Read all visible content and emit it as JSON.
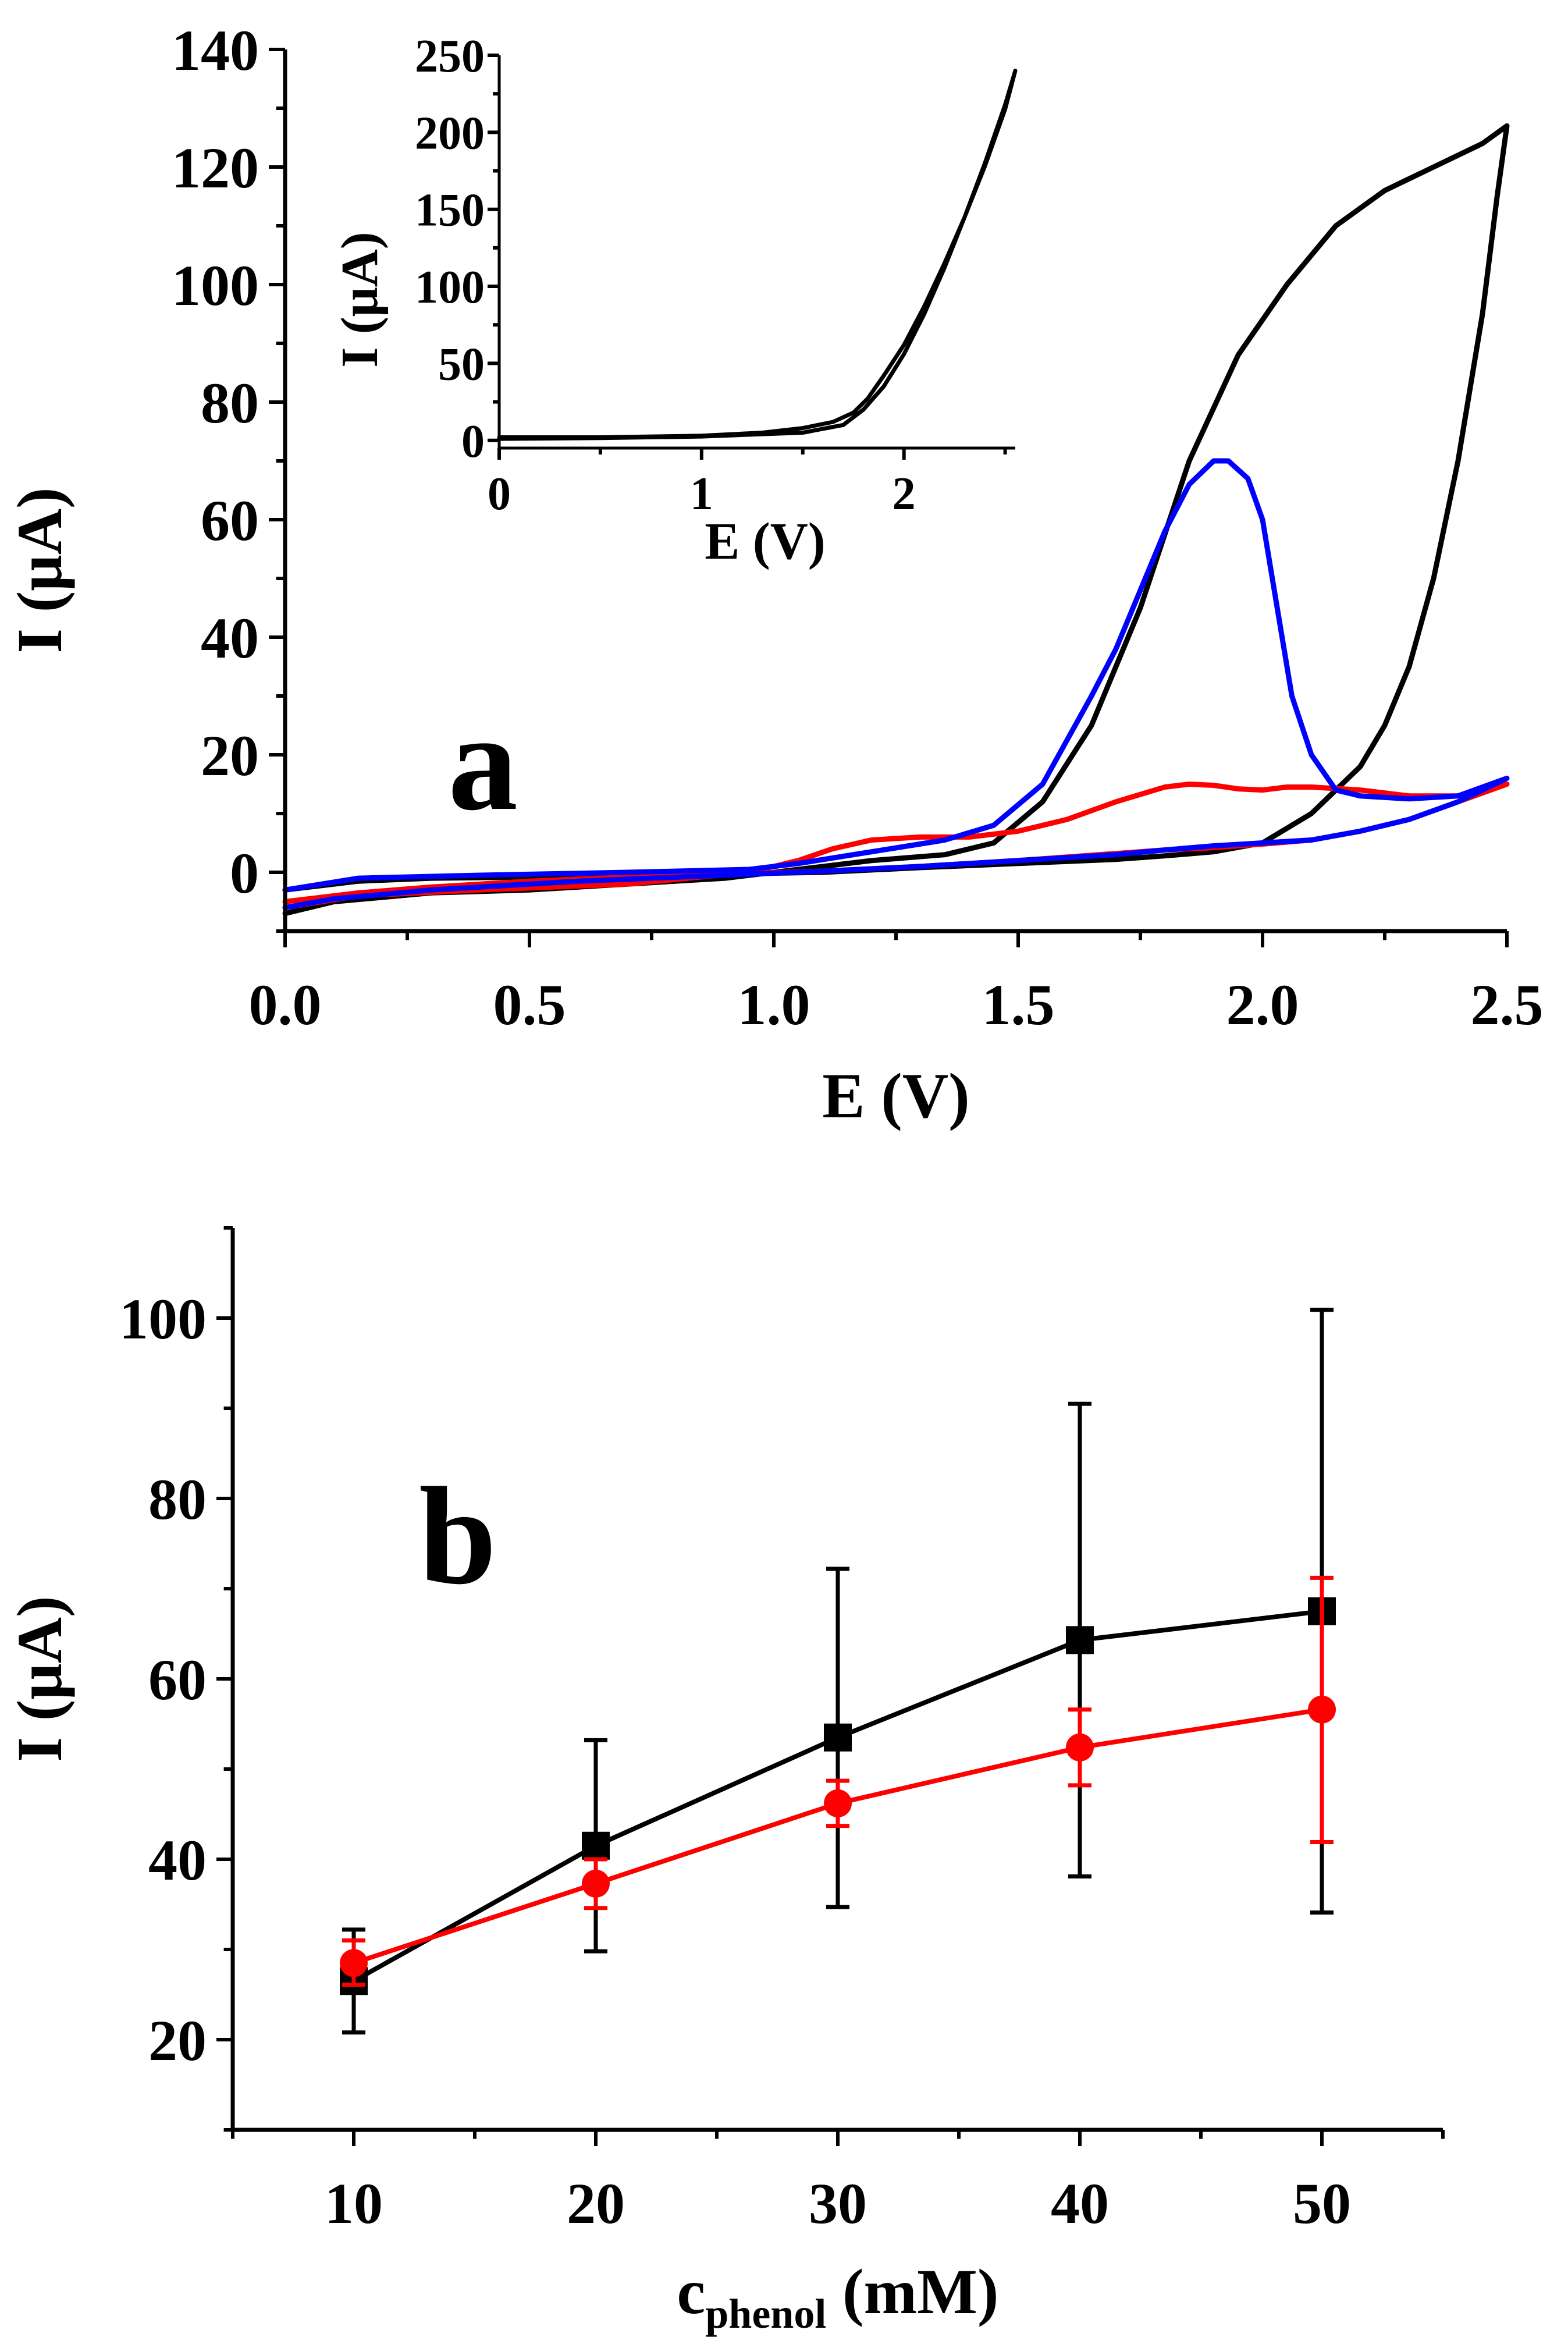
{
  "chart_data": [
    {
      "type": "line",
      "panel_label": "a",
      "xlabel": "E (V)",
      "ylabel": "I (μA)",
      "xlim": [
        0,
        2.5
      ],
      "ylim": [
        -10,
        140
      ],
      "xticks": [
        "0.0",
        "0.5",
        "1.0",
        "1.5",
        "2.0",
        "2.5"
      ],
      "yticks": [
        "0",
        "20",
        "40",
        "60",
        "80",
        "100",
        "120",
        "140"
      ],
      "series": [
        {
          "name": "black",
          "color": "#000000",
          "x": [
            0.0,
            0.1,
            0.3,
            0.5,
            0.7,
            0.9,
            1.05,
            1.2,
            1.35,
            1.45,
            1.55,
            1.65,
            1.75,
            1.85,
            1.95,
            2.05,
            2.15,
            2.25,
            2.35,
            2.45,
            2.5,
            2.48,
            2.45,
            2.4,
            2.35,
            2.3,
            2.25,
            2.2,
            2.1,
            2.0,
            1.9,
            1.8,
            1.7,
            1.5,
            1.3,
            1.1,
            0.9,
            0.7,
            0.5,
            0.3,
            0.15,
            0.0
          ],
          "y": [
            -7,
            -5,
            -3.5,
            -3,
            -2,
            -1,
            0.5,
            2,
            3,
            5,
            12,
            25,
            45,
            70,
            88,
            100,
            110,
            116,
            120,
            124,
            127,
            115,
            95,
            70,
            50,
            35,
            25,
            18,
            10,
            5,
            3.5,
            2.8,
            2.2,
            1.5,
            0.8,
            0,
            -0.3,
            -0.5,
            -0.8,
            -1,
            -1.5,
            -3
          ]
        },
        {
          "name": "red",
          "color": "#ff0000",
          "x": [
            0.0,
            0.15,
            0.4,
            0.7,
            0.95,
            1.05,
            1.12,
            1.2,
            1.3,
            1.4,
            1.5,
            1.6,
            1.7,
            1.8,
            1.85,
            1.9,
            1.95,
            2.0,
            2.05,
            2.1,
            2.2,
            2.3,
            2.4,
            2.5,
            2.4,
            2.3,
            2.2,
            2.1,
            2.0,
            1.9,
            1.8,
            1.7,
            1.6,
            1.5,
            1.3,
            1.1,
            0.9,
            0.7,
            0.5,
            0.3,
            0.15,
            0.0
          ],
          "y": [
            -6,
            -4,
            -3,
            -2,
            0,
            2,
            4,
            5.5,
            6,
            6,
            7,
            9,
            12,
            14.5,
            15,
            14.8,
            14.2,
            14,
            14.5,
            14.5,
            14,
            13,
            13,
            15,
            12,
            9,
            7,
            5.5,
            4.8,
            4.2,
            3.8,
            3.2,
            2.6,
            2,
            1,
            0.2,
            -0.3,
            -0.8,
            -1.5,
            -2.5,
            -3.5,
            -5
          ]
        },
        {
          "name": "blue",
          "color": "#0000ff",
          "x": [
            0.0,
            0.15,
            0.4,
            0.7,
            0.95,
            1.05,
            1.2,
            1.35,
            1.45,
            1.55,
            1.65,
            1.7,
            1.75,
            1.8,
            1.85,
            1.9,
            1.93,
            1.97,
            2.0,
            2.03,
            2.06,
            2.1,
            2.15,
            2.2,
            2.3,
            2.4,
            2.5,
            2.4,
            2.3,
            2.2,
            2.1,
            2.0,
            1.9,
            1.8,
            1.7,
            1.5,
            1.3,
            1.1,
            0.9,
            0.6,
            0.3,
            0.1,
            0.0
          ],
          "y": [
            -3,
            -1,
            -0.5,
            0,
            0.5,
            1.5,
            3.5,
            5.5,
            8,
            15,
            30,
            38,
            48,
            58,
            66,
            70,
            70,
            67,
            60,
            45,
            30,
            20,
            14,
            13,
            12.5,
            13,
            16,
            12,
            9,
            7,
            5.5,
            5,
            4.5,
            3.8,
            3,
            2,
            1,
            0.2,
            -0.5,
            -1.5,
            -3,
            -4.5,
            -6
          ]
        }
      ],
      "inset": {
        "type": "line",
        "xlabel": "E (V)",
        "ylabel": "I (μA)",
        "xlim": [
          0,
          2.55
        ],
        "ylim": [
          -5,
          250
        ],
        "xticks": [
          "0",
          "1",
          "2"
        ],
        "yticks": [
          "0",
          "50",
          "100",
          "150",
          "200",
          "250"
        ],
        "series": [
          {
            "name": "black",
            "color": "#000000",
            "x": [
              0.0,
              0.5,
              1.0,
              1.3,
              1.5,
              1.65,
              1.75,
              1.82,
              1.9,
              2.0,
              2.1,
              2.2,
              2.3,
              2.4,
              2.5,
              2.55,
              2.5,
              2.4,
              2.3,
              2.2,
              2.1,
              2.0,
              1.9,
              1.8,
              1.7,
              1.5,
              1.0,
              0.5,
              0.0
            ],
            "y": [
              2,
              2,
              3,
              5,
              8,
              12,
              18,
              27,
              42,
              62,
              87,
              115,
              145,
              178,
              215,
              240,
              218,
              180,
              145,
              112,
              82,
              56,
              35,
              20,
              10,
              5,
              2.5,
              1.5,
              1
            ]
          }
        ]
      }
    },
    {
      "type": "line",
      "panel_label": "b",
      "xlabel_main": "c",
      "xlabel_sub": "phenol",
      "xlabel_unit": " (mM)",
      "ylabel": "I (μA)",
      "xlim": [
        5,
        55
      ],
      "ylim": [
        10,
        110
      ],
      "xticks": [
        "10",
        "20",
        "30",
        "40",
        "50"
      ],
      "yticks": [
        "20",
        "40",
        "60",
        "80",
        "100"
      ],
      "series": [
        {
          "name": "black squares",
          "color": "#000000",
          "marker": "square",
          "x": [
            10,
            20,
            30,
            40,
            50
          ],
          "y": [
            26.5,
            41.5,
            53.5,
            64.3,
            67.5
          ],
          "err_low": [
            20.8,
            29.8,
            34.7,
            38.1,
            34.1
          ],
          "err_high": [
            32.2,
            53.2,
            72.2,
            90.5,
            100.9
          ]
        },
        {
          "name": "red circles",
          "color": "#ff0000",
          "marker": "circle",
          "x": [
            10,
            20,
            30,
            40,
            50
          ],
          "y": [
            28.5,
            37.3,
            46.2,
            52.4,
            56.6
          ],
          "err_low": [
            26.1,
            34.6,
            43.7,
            48.2,
            41.9
          ],
          "err_high": [
            31.0,
            40.0,
            48.7,
            56.6,
            71.2
          ]
        }
      ]
    }
  ]
}
